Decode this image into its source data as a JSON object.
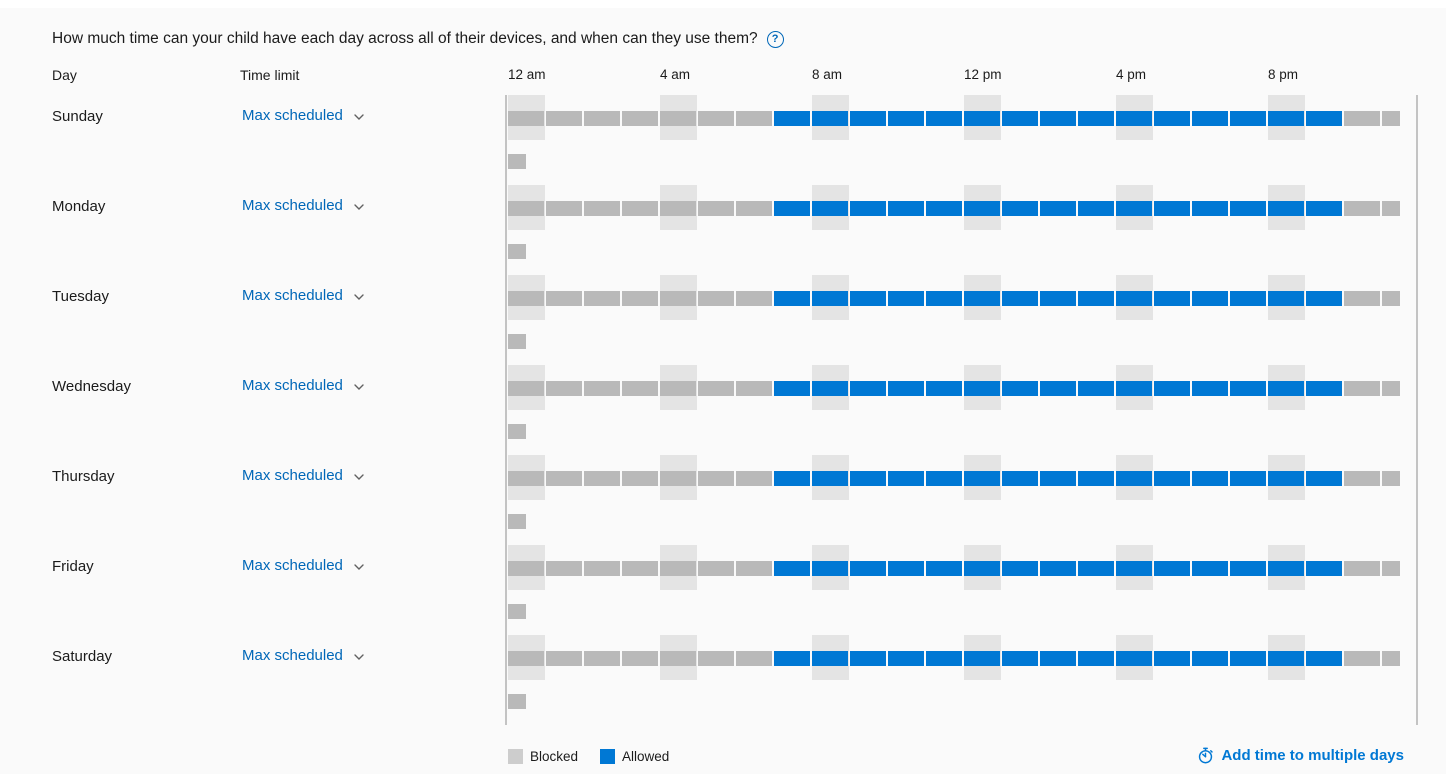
{
  "title": "How much time can your child have each day across all of their devices, and when can they use them?",
  "help_icon_glyph": "?",
  "columns": {
    "day": "Day",
    "time_limit": "Time limit"
  },
  "time_axis": [
    {
      "label": "12 am",
      "hour": 0
    },
    {
      "label": "4 am",
      "hour": 4
    },
    {
      "label": "8 am",
      "hour": 8
    },
    {
      "label": "12 pm",
      "hour": 12
    },
    {
      "label": "4 pm",
      "hour": 16
    },
    {
      "label": "8 pm",
      "hour": 20
    }
  ],
  "days": [
    {
      "day": "Sunday",
      "time_limit": "Max scheduled"
    },
    {
      "day": "Monday",
      "time_limit": "Max scheduled"
    },
    {
      "day": "Tuesday",
      "time_limit": "Max scheduled"
    },
    {
      "day": "Wednesday",
      "time_limit": "Max scheduled"
    },
    {
      "day": "Thursday",
      "time_limit": "Max scheduled"
    },
    {
      "day": "Friday",
      "time_limit": "Max scheduled"
    },
    {
      "day": "Saturday",
      "time_limit": "Max scheduled"
    }
  ],
  "schedule": {
    "hours_per_day": 24,
    "allowed_start": "7:00 am",
    "allowed_end": "10:00 pm",
    "highlight_hours": [
      0,
      4,
      8,
      12,
      16,
      20
    ],
    "cell_states": [
      "blocked",
      "blocked",
      "blocked",
      "blocked",
      "blocked",
      "blocked",
      "blocked",
      "allowed",
      "allowed",
      "allowed",
      "allowed",
      "allowed",
      "allowed",
      "allowed",
      "allowed",
      "allowed",
      "allowed",
      "allowed",
      "allowed",
      "allowed",
      "allowed",
      "allowed",
      "blocked",
      "blocked"
    ],
    "overflow_cell": "blocked"
  },
  "legend": [
    {
      "label": "Blocked",
      "state": "blocked"
    },
    {
      "label": "Allowed",
      "state": "allowed"
    }
  ],
  "actions": {
    "add_time": "Add time to multiple days"
  },
  "colors": {
    "allowed": "#0078d4",
    "blocked": "#b9b9b9",
    "hour_band": "#e4e4e4",
    "legend_blocked": "#cdcdcd",
    "link": "#0067b8",
    "accent_link": "#0078d4",
    "rule": "#c3c3c3"
  }
}
